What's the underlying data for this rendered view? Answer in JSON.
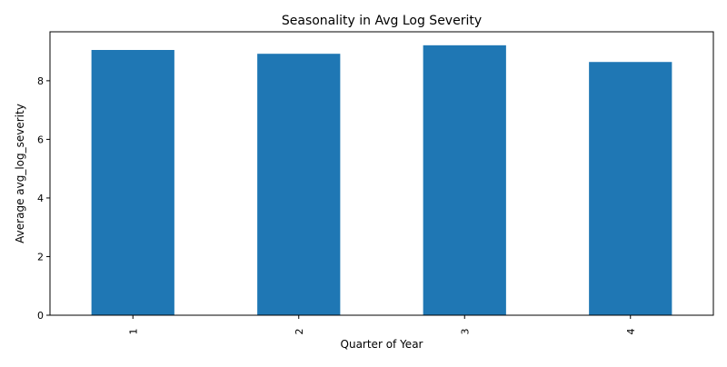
{
  "chart_data": {
    "type": "bar",
    "title": "Seasonality in Avg Log Severity",
    "xlabel": "Quarter of Year",
    "ylabel": "Average avg_log_severity",
    "categories": [
      "1",
      "2",
      "3",
      "4"
    ],
    "values": [
      9.05,
      8.92,
      9.21,
      8.64
    ],
    "ylim": [
      0,
      9.67
    ],
    "yticks": [
      0,
      2,
      4,
      6,
      8
    ],
    "grid": false,
    "legend": "none",
    "colors": {
      "bar": "#1f77b4",
      "axes": "#000000"
    }
  }
}
